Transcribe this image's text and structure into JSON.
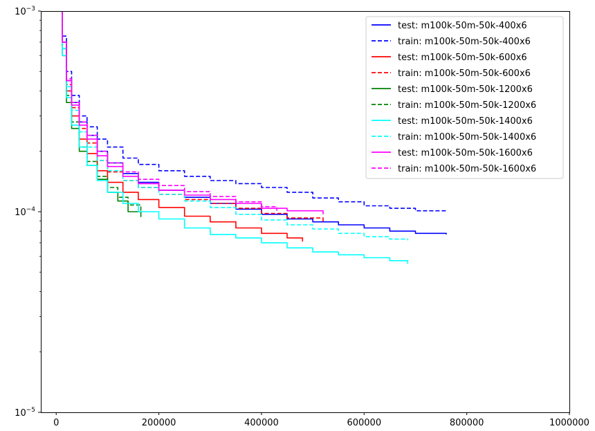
{
  "chart_data": {
    "type": "line",
    "title": "",
    "xlabel": "",
    "ylabel": "",
    "xlim": [
      -30000,
      1000000
    ],
    "ylim": [
      1e-05,
      0.001
    ],
    "yscale": "log",
    "x_ticks": [
      {
        "value": 0,
        "label": "0"
      },
      {
        "value": 200000,
        "label": "200000"
      },
      {
        "value": 400000,
        "label": "400000"
      },
      {
        "value": 600000,
        "label": "600000"
      },
      {
        "value": 800000,
        "label": "800000"
      },
      {
        "value": 1000000,
        "label": "1000000"
      }
    ],
    "y_ticks": [
      {
        "value": 1e-05,
        "base": "10",
        "exp": "−5"
      },
      {
        "value": 0.0001,
        "base": "10",
        "exp": "−4"
      },
      {
        "value": 0.001,
        "base": "10",
        "exp": "−3"
      }
    ],
    "grid": false,
    "legend_position": "top-right",
    "series": [
      {
        "name": "test: m100k-50m-50k-400x6",
        "color": "#0000ff",
        "style": "solid",
        "x": [
          8000,
          12000,
          20000,
          30000,
          45000,
          60000,
          80000,
          100000,
          130000,
          160000,
          200000,
          250000,
          300000,
          350000,
          400000,
          450000,
          500000,
          550000,
          600000,
          650000,
          700000,
          760000
        ],
        "y": [
          0.00105,
          0.0007,
          0.00045,
          0.00035,
          0.00028,
          0.00024,
          0.0002,
          0.000175,
          0.000155,
          0.00014,
          0.000128,
          0.000118,
          0.00011,
          0.000103,
          9.7e-05,
          9.2e-05,
          8.9e-05,
          8.6e-05,
          8.3e-05,
          8e-05,
          7.8e-05,
          7.7e-05
        ]
      },
      {
        "name": "train: m100k-50m-50k-400x6",
        "color": "#0000ff",
        "style": "dashed",
        "x": [
          8000,
          12000,
          20000,
          30000,
          45000,
          60000,
          80000,
          100000,
          130000,
          160000,
          200000,
          250000,
          300000,
          350000,
          400000,
          450000,
          500000,
          550000,
          600000,
          650000,
          700000,
          760000
        ],
        "y": [
          0.00105,
          0.00075,
          0.0005,
          0.00038,
          0.0003,
          0.000265,
          0.00023,
          0.00021,
          0.000185,
          0.000172,
          0.00016,
          0.00015,
          0.000143,
          0.000138,
          0.000132,
          0.000125,
          0.000117,
          0.000112,
          0.000107,
          0.000104,
          0.000101,
          0.0001
        ]
      },
      {
        "name": "test: m100k-50m-50k-600x6",
        "color": "#ff0000",
        "style": "solid",
        "x": [
          8000,
          12000,
          20000,
          30000,
          45000,
          60000,
          80000,
          100000,
          130000,
          160000,
          200000,
          250000,
          300000,
          350000,
          400000,
          450000,
          480000
        ],
        "y": [
          0.00105,
          0.0006,
          0.0004,
          0.0003,
          0.00023,
          0.000195,
          0.00016,
          0.00014,
          0.000125,
          0.000115,
          0.000105,
          9.5e-05,
          8.9e-05,
          8.3e-05,
          7.8e-05,
          7.4e-05,
          7.1e-05
        ]
      },
      {
        "name": "train: m100k-50m-50k-600x6",
        "color": "#ff0000",
        "style": "dashed",
        "x": [
          8000,
          12000,
          20000,
          30000,
          45000,
          60000,
          80000,
          100000,
          130000,
          160000,
          200000,
          250000,
          300000,
          350000,
          400000,
          450000,
          520000
        ],
        "y": [
          0.00105,
          0.00065,
          0.00043,
          0.00033,
          0.00026,
          0.00022,
          0.00018,
          0.000158,
          0.000143,
          0.000132,
          0.000122,
          0.000115,
          0.00011,
          0.000104,
          9.8e-05,
          9.3e-05,
          8.8e-05
        ]
      },
      {
        "name": "test: m100k-50m-50k-1200x6",
        "color": "#008000",
        "style": "solid",
        "x": [
          8000,
          12000,
          20000,
          30000,
          45000,
          60000,
          80000,
          100000,
          120000,
          140000,
          165000
        ],
        "y": [
          0.00105,
          0.0006,
          0.00035,
          0.00026,
          0.0002,
          0.00017,
          0.000145,
          0.000125,
          0.000113,
          0.0001,
          9.4e-05
        ]
      },
      {
        "name": "train: m100k-50m-50k-1200x6",
        "color": "#008000",
        "style": "dashed",
        "x": [
          8000,
          12000,
          20000,
          30000,
          45000,
          60000,
          80000,
          100000,
          120000,
          140000,
          165000
        ],
        "y": [
          0.00105,
          0.00065,
          0.00038,
          0.00028,
          0.00021,
          0.000178,
          0.00015,
          0.000132,
          0.000118,
          0.000108,
          0.0001
        ]
      },
      {
        "name": "test: m100k-50m-50k-1400x6",
        "color": "#00ffff",
        "style": "solid",
        "x": [
          8000,
          12000,
          20000,
          30000,
          45000,
          60000,
          80000,
          100000,
          130000,
          160000,
          200000,
          250000,
          300000,
          350000,
          400000,
          450000,
          500000,
          550000,
          600000,
          650000,
          685000
        ],
        "y": [
          0.00105,
          0.0006,
          0.00037,
          0.00027,
          0.00021,
          0.00017,
          0.000143,
          0.000125,
          0.00011,
          0.0001,
          9.2e-05,
          8.3e-05,
          7.7e-05,
          7.4e-05,
          7e-05,
          6.6e-05,
          6.3e-05,
          6.1e-05,
          5.9e-05,
          5.7e-05,
          5.5e-05
        ]
      },
      {
        "name": "train: m100k-50m-50k-1400x6",
        "color": "#00ffff",
        "style": "dashed",
        "x": [
          8000,
          12000,
          20000,
          30000,
          45000,
          60000,
          80000,
          100000,
          130000,
          160000,
          200000,
          250000,
          300000,
          350000,
          400000,
          450000,
          500000,
          550000,
          600000,
          650000,
          685000
        ],
        "y": [
          0.00105,
          0.00065,
          0.00042,
          0.00032,
          0.00025,
          0.00021,
          0.00018,
          0.00016,
          0.000143,
          0.000132,
          0.000122,
          0.000113,
          0.000105,
          9.7e-05,
          9.1e-05,
          8.6e-05,
          8.2e-05,
          7.8e-05,
          7.5e-05,
          7.3e-05,
          7.2e-05
        ]
      },
      {
        "name": "test: m100k-50m-50k-1600x6",
        "color": "#ff00ff",
        "style": "solid",
        "x": [
          8000,
          12000,
          20000,
          30000,
          45000,
          60000,
          80000,
          100000,
          130000,
          160000,
          200000,
          250000,
          300000,
          350000,
          400000,
          450000,
          520000
        ],
        "y": [
          0.00105,
          0.0007,
          0.00045,
          0.00034,
          0.00027,
          0.00023,
          0.00019,
          0.000168,
          0.00015,
          0.000138,
          0.000128,
          0.000121,
          0.000115,
          0.00011,
          0.000104,
          0.000101,
          9.7e-05
        ]
      },
      {
        "name": "train: m100k-50m-50k-1600x6",
        "color": "#ff00ff",
        "style": "dashed",
        "x": [
          8000,
          12000,
          20000,
          30000,
          45000,
          60000,
          80000,
          100000,
          130000,
          160000,
          200000,
          250000,
          300000,
          350000,
          400000,
          430000
        ],
        "y": [
          0.00105,
          0.0007,
          0.00046,
          0.00035,
          0.00028,
          0.00024,
          0.0002,
          0.000175,
          0.000158,
          0.000145,
          0.000135,
          0.000126,
          0.000119,
          0.000112,
          0.000106,
          0.000101
        ]
      }
    ]
  }
}
